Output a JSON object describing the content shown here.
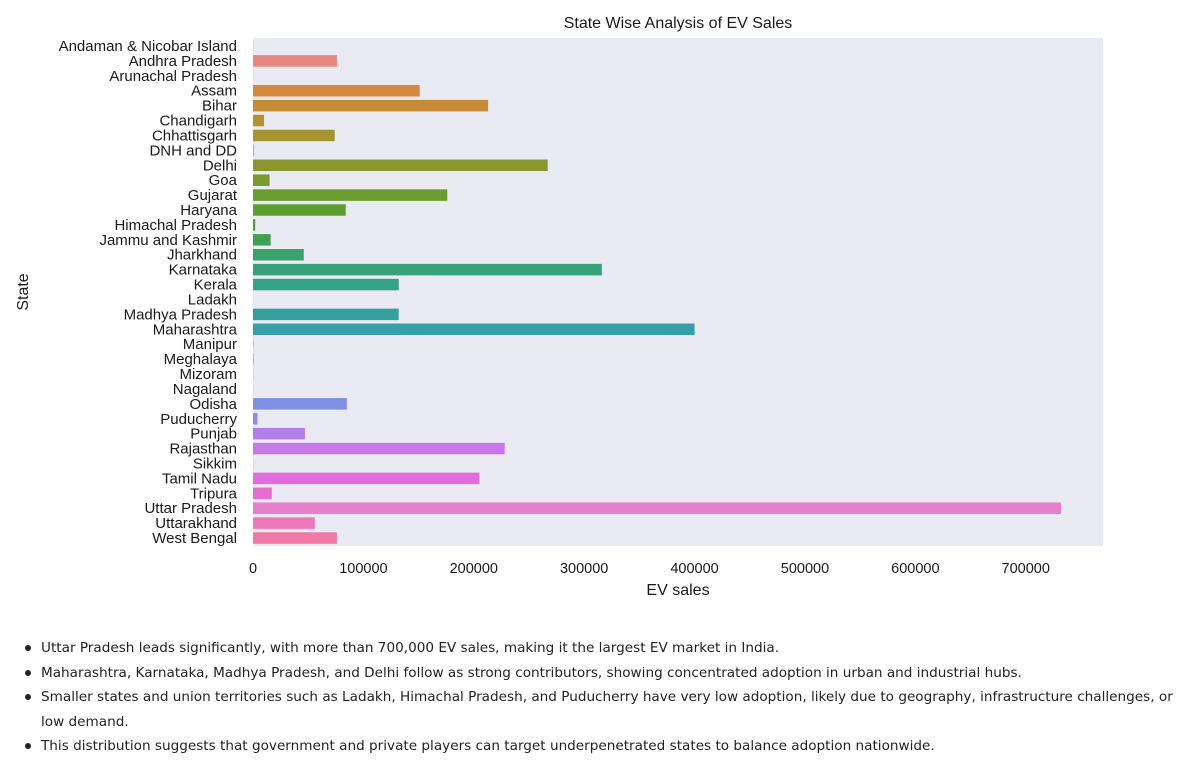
{
  "chart_data": {
    "type": "bar",
    "orientation": "horizontal",
    "title": "State Wise Analysis of EV Sales",
    "xlabel": "EV sales",
    "ylabel": "State",
    "xlim": [
      0,
      770000
    ],
    "xticks": [
      0,
      100000,
      200000,
      300000,
      400000,
      500000,
      600000,
      700000
    ],
    "xtick_labels": [
      "0",
      "100000",
      "200000",
      "300000",
      "400000",
      "500000",
      "600000",
      "700000"
    ],
    "grid": false,
    "categories": [
      "Andaman & Nicobar Island",
      "Andhra Pradesh",
      "Arunachal Pradesh",
      "Assam",
      "Bihar",
      "Chandigarh",
      "Chhattisgarh",
      "DNH and DD",
      "Delhi",
      "Goa",
      "Gujarat",
      "Haryana",
      "Himachal Pradesh",
      "Jammu and Kashmir",
      "Jharkhand",
      "Karnataka",
      "Kerala",
      "Ladakh",
      "Madhya Pradesh",
      "Maharashtra",
      "Manipur",
      "Meghalaya",
      "Mizoram",
      "Nagaland",
      "Odisha",
      "Puducherry",
      "Punjab",
      "Rajasthan",
      "Sikkim",
      "Tamil Nadu",
      "Tripura",
      "Uttar Pradesh",
      "Uttarakhand",
      "West Bengal"
    ],
    "values": [
      200,
      76000,
      100,
      151000,
      213000,
      10000,
      74000,
      600,
      267000,
      15000,
      176000,
      84000,
      2000,
      16000,
      46000,
      316000,
      132000,
      50,
      132000,
      400000,
      300,
      400,
      200,
      100,
      85000,
      4000,
      47000,
      228000,
      200,
      205000,
      17000,
      732000,
      56000,
      76000
    ],
    "colors": [
      "#f77189",
      "#e8857e",
      "#e38872",
      "#d58a3f",
      "#c68c35",
      "#b6912f",
      "#a6942f",
      "#98962f",
      "#8a972f",
      "#789a2f",
      "#6a9c30",
      "#5d9e31",
      "#47a03a",
      "#40a155",
      "#3ba269",
      "#37a27a",
      "#34a287",
      "#33a293",
      "#35a19e",
      "#36a0a8",
      "#399fb1",
      "#3c9dbd",
      "#44a0d2",
      "#5897e8",
      "#7e8fe5",
      "#9a88e6",
      "#b27eea",
      "#c677e8",
      "#d66ee6",
      "#e26be0",
      "#e86ccf",
      "#e87fcc",
      "#ec78b9",
      "#f07aa5"
    ]
  },
  "notes": [
    "Uttar Pradesh leads significantly, with more than 700,000 EV sales, making it the largest EV market in India.",
    "Maharashtra, Karnataka, Madhya Pradesh, and Delhi follow as strong contributors, showing concentrated adoption in urban and industrial hubs.",
    "Smaller states and union territories such as Ladakh, Himachal Pradesh, and Puducherry have very low adoption, likely due to geography, infrastructure challenges, or low demand.",
    "This distribution suggests that government and private players can target underpenetrated states to balance adoption nationwide."
  ],
  "colors": {
    "plot_background": "#eaeaf2",
    "text": "#1a1a1a"
  }
}
